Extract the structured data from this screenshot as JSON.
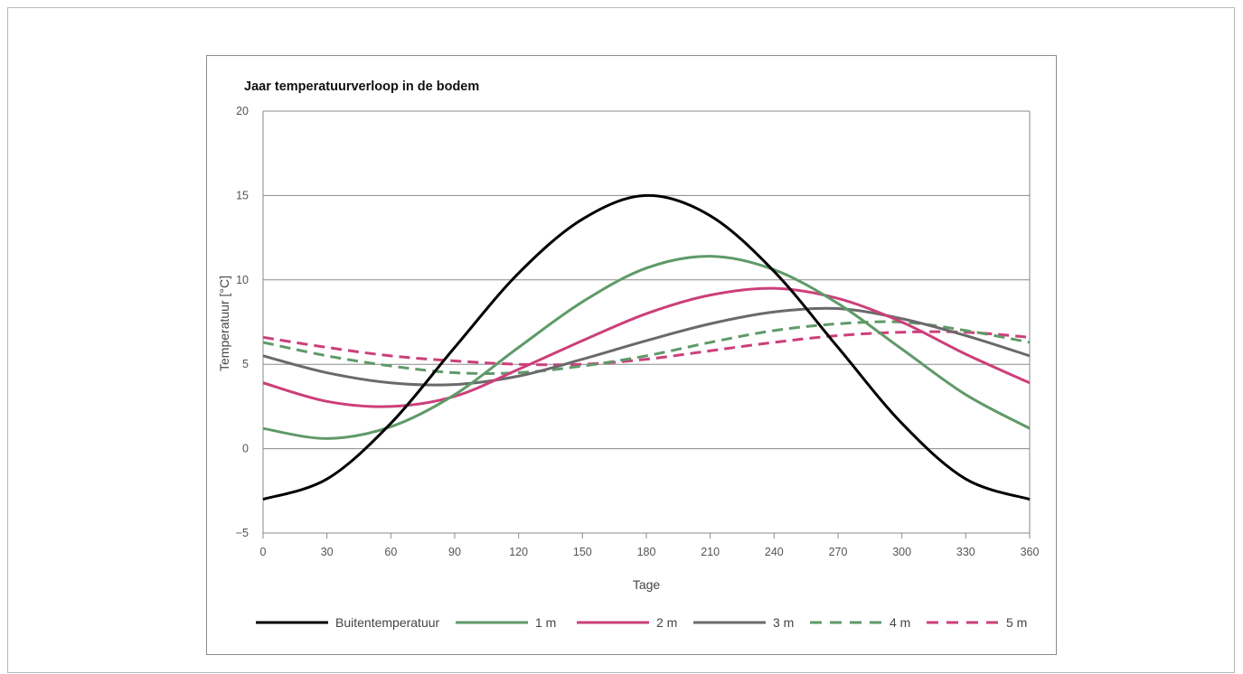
{
  "chart_data": {
    "type": "line",
    "title": "Jaar temperatuurverloop in de bodem",
    "xlabel": "Tage",
    "ylabel": "Temperatuur [°C]",
    "xlim": [
      0,
      360
    ],
    "ylim": [
      -5,
      20
    ],
    "xticks": [
      "0",
      "30",
      "60",
      "90",
      "120",
      "150",
      "180",
      "210",
      "240",
      "270",
      "300",
      "330",
      "360"
    ],
    "yticks": [
      "−5",
      "0",
      "5",
      "10",
      "15",
      "20"
    ],
    "grid": "horizontal",
    "legend_position": "bottom",
    "x": [
      0,
      30,
      60,
      90,
      120,
      150,
      180,
      210,
      240,
      270,
      300,
      330,
      360
    ],
    "series": [
      {
        "name": "Buitentemperatuur",
        "color": "#000000",
        "dash": "solid",
        "values": [
          -3.0,
          -1.8,
          1.5,
          6.0,
          10.4,
          13.6,
          15.0,
          13.8,
          10.5,
          6.0,
          1.5,
          -1.8,
          -3.0
        ]
      },
      {
        "name": "1 m",
        "color": "#5f9a68",
        "dash": "solid",
        "values": [
          1.2,
          0.6,
          1.3,
          3.2,
          6.0,
          8.7,
          10.7,
          11.4,
          10.6,
          8.6,
          5.9,
          3.2,
          1.2
        ]
      },
      {
        "name": "2 m",
        "color": "#cc3f7a",
        "dash": "solid",
        "values": [
          3.9,
          2.8,
          2.5,
          3.1,
          4.7,
          6.4,
          8.0,
          9.1,
          9.5,
          8.9,
          7.5,
          5.6,
          3.9
        ]
      },
      {
        "name": "3 m",
        "color": "#6a6a6a",
        "dash": "solid",
        "values": [
          5.5,
          4.5,
          3.9,
          3.8,
          4.3,
          5.3,
          6.4,
          7.4,
          8.1,
          8.3,
          7.7,
          6.7,
          5.5
        ]
      },
      {
        "name": "4 m",
        "color": "#5f9a68",
        "dash": "dashed",
        "values": [
          6.3,
          5.5,
          4.9,
          4.5,
          4.5,
          4.9,
          5.5,
          6.3,
          7.0,
          7.4,
          7.5,
          7.0,
          6.3
        ]
      },
      {
        "name": "5 m",
        "color": "#cc3f7a",
        "dash": "dashed",
        "values": [
          6.6,
          6.0,
          5.5,
          5.2,
          5.0,
          5.0,
          5.3,
          5.8,
          6.3,
          6.7,
          6.9,
          6.9,
          6.6
        ]
      }
    ]
  }
}
